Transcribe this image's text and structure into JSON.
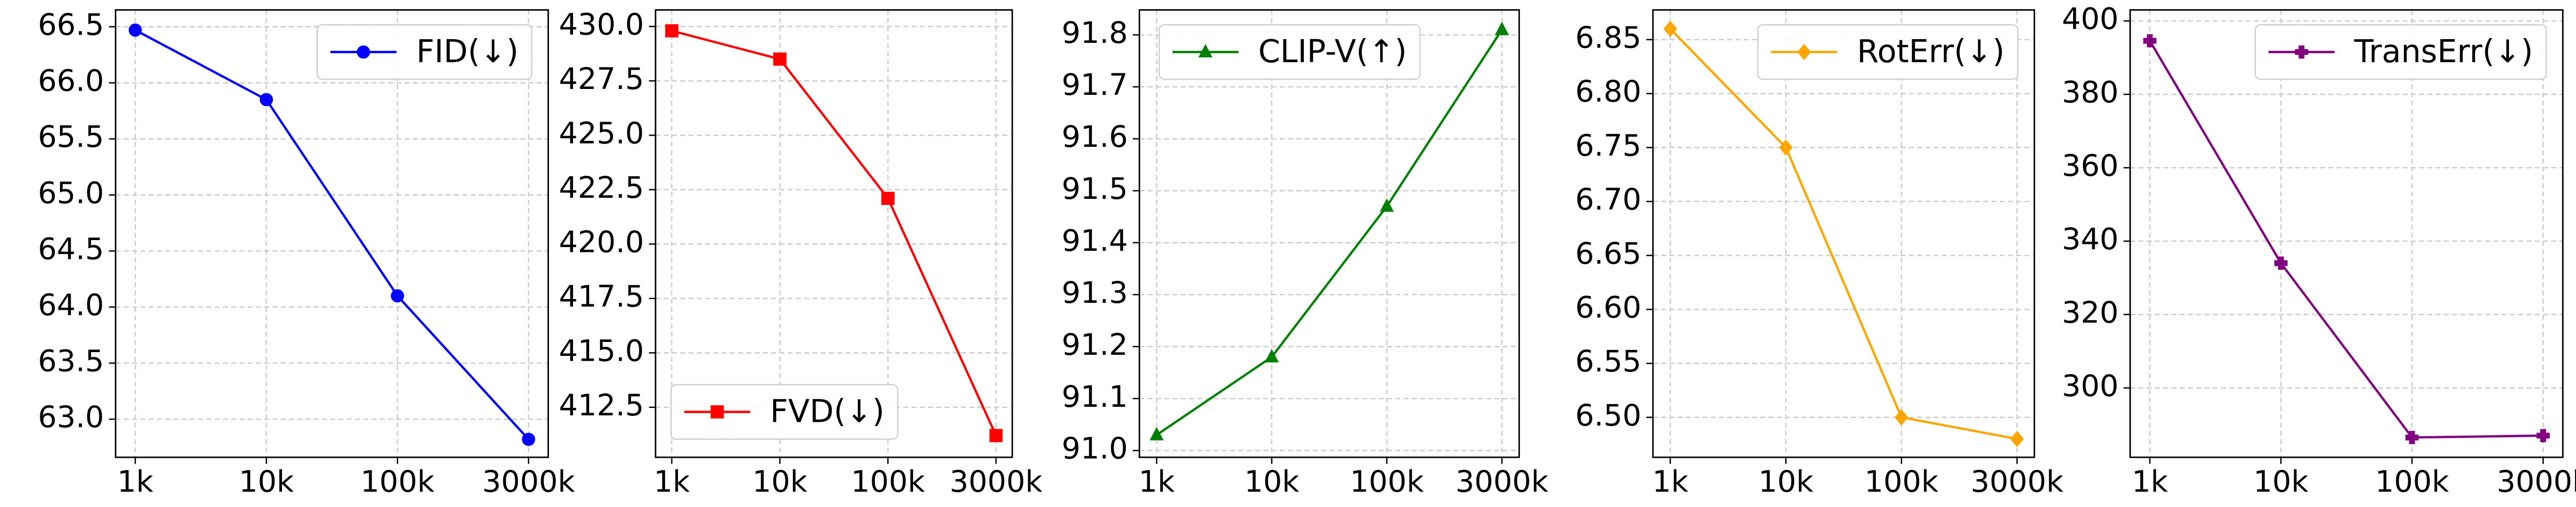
{
  "chart_data": [
    {
      "type": "line",
      "categories": [
        "1k",
        "10k",
        "100k",
        "3000k"
      ],
      "ylim": [
        62.66,
        66.65
      ],
      "yticks": [
        {
          "value": 63,
          "label": "63.0"
        },
        63.5,
        {
          "value": 64,
          "label": "64.0"
        },
        64.5,
        {
          "value": 65,
          "label": "65.0"
        },
        65.5,
        {
          "value": 66,
          "label": "66.0"
        },
        66.5
      ],
      "grid": true,
      "legend": "upper right",
      "series": [
        {
          "name": "FID(↓)",
          "color": "#0000ff",
          "marker": "circle",
          "values": [
            66.47,
            65.85,
            64.1,
            62.82
          ]
        }
      ]
    },
    {
      "type": "line",
      "categories": [
        "1k",
        "10k",
        "100k",
        "3000k"
      ],
      "ylim": [
        410.2,
        430.76
      ],
      "yticks": [
        412.5,
        {
          "value": 415,
          "label": "415.0"
        },
        417.5,
        {
          "value": 420,
          "label": "420.0"
        },
        422.5,
        {
          "value": 425,
          "label": "425.0"
        },
        427.5,
        {
          "value": 430,
          "label": "430.0"
        }
      ],
      "grid": true,
      "legend": "lower center",
      "series": [
        {
          "name": "FVD(↓)",
          "color": "#ff0000",
          "marker": "square",
          "values": [
            429.8,
            428.5,
            422.1,
            411.2
          ]
        }
      ]
    },
    {
      "type": "line",
      "categories": [
        "1k",
        "10k",
        "100k",
        "3000k"
      ],
      "ylim": [
        90.987,
        91.848
      ],
      "yticks": [
        {
          "value": 91,
          "label": "91.0"
        },
        91.1,
        91.2,
        91.3,
        91.4,
        91.5,
        91.6,
        91.7,
        91.8
      ],
      "grid": true,
      "legend": "upper left",
      "series": [
        {
          "name": "CLIP-V(↑)",
          "color": "#008000",
          "marker": "triangle",
          "values": [
            91.03,
            91.18,
            91.47,
            91.81
          ]
        }
      ]
    },
    {
      "type": "line",
      "categories": [
        "1k",
        "10k",
        "100k",
        "3000k"
      ],
      "ylim": [
        6.463,
        6.8775
      ],
      "yticks": [
        {
          "value": 6.5,
          "label": "6.50"
        },
        6.55,
        {
          "value": 6.6,
          "label": "6.60"
        },
        6.65,
        {
          "value": 6.7,
          "label": "6.70"
        },
        6.75,
        {
          "value": 6.8,
          "label": "6.80"
        },
        6.85
      ],
      "grid": true,
      "legend": "upper right",
      "series": [
        {
          "name": "RotErr(↓)",
          "color": "#ffa500",
          "marker": "diamond",
          "values": [
            6.86,
            6.75,
            6.5,
            6.48
          ]
        }
      ]
    },
    {
      "type": "line",
      "categories": [
        "1k",
        "10k",
        "100k",
        "3000k"
      ],
      "ylim": [
        281.1,
        403
      ],
      "yticks": [
        300,
        320,
        340,
        360,
        380,
        400
      ],
      "grid": true,
      "legend": "upper right",
      "series": [
        {
          "name": "TransErr(↓)",
          "color": "#800080",
          "marker": "plus",
          "values": [
            394.6,
            334,
            286.5,
            287
          ]
        }
      ]
    }
  ]
}
